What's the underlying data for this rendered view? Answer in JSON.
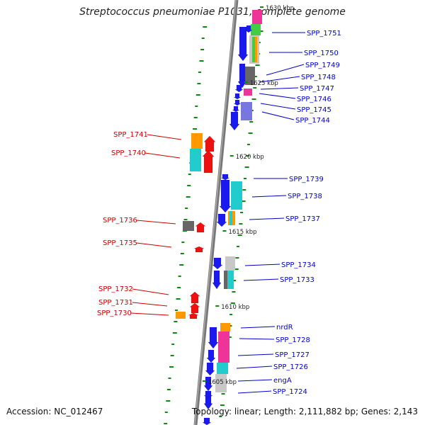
{
  "title": "Streptococcus pneumoniae P1031, complete genome",
  "footer": {
    "accession": "Accession: NC_012467",
    "topology": "Topology: linear; Length: 2,111,882 bp; Genes: 2,143"
  },
  "colors": {
    "axis": "#888888",
    "forward_label": "#0000cc",
    "reverse_label": "#cc0000",
    "blue_gene": "#1a1aee",
    "red_gene": "#ee1111",
    "gray_gene": "#666666",
    "cog_orange": "#ff9900",
    "cog_cyan": "#22cccc",
    "cog_light_gray": "#c8c8c8",
    "cog_magenta": "#ee3399",
    "cog_purple": "#7777dd",
    "cog_green": "#44cc44",
    "dash_green": "#118811"
  },
  "kbp_ticks": [
    "1630 kbp",
    "1625 kbp",
    "1620 kbp",
    "1615 kbp",
    "1610 kbp",
    "1605 kbp"
  ],
  "forward_genes": [
    "SPP_1751",
    "SPP_1750",
    "SPP_1749",
    "SPP_1748",
    "SPP_1747",
    "SPP_1746",
    "SPP_1745",
    "SPP_1744",
    "SPP_1739",
    "SPP_1738",
    "SPP_1737",
    "SPP_1734",
    "SPP_1733",
    "nrdR",
    "SPP_1728",
    "SPP_1727",
    "SPP_1726",
    "engA",
    "SPP_1724"
  ],
  "reverse_genes": [
    "SPP_1741",
    "SPP_1740",
    "SPP_1736",
    "SPP_1735",
    "SPP_1732",
    "SPP_1731",
    "SPP_1730"
  ]
}
